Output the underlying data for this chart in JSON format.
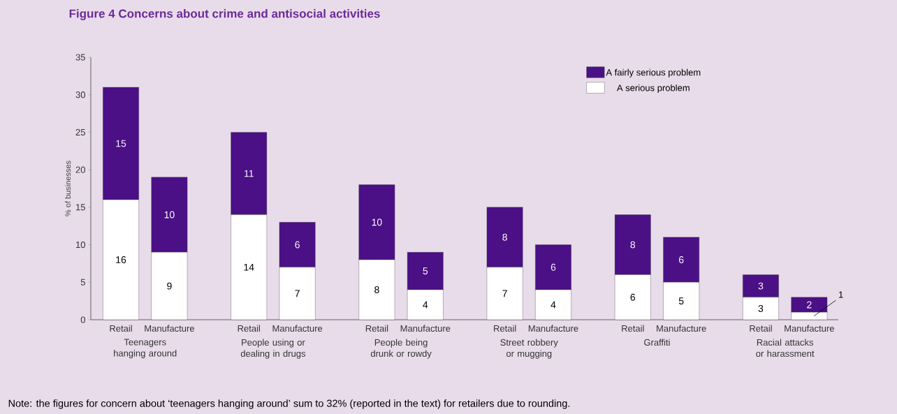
{
  "chart_data": {
    "type": "bar",
    "title": "Figure 4  Concerns about crime and antisocial activities",
    "ylabel": "% of businesses",
    "categories": [
      "Retail",
      "Manufacture",
      "Retail",
      "Manufacture",
      "Retail",
      "Manufacture",
      "Retail",
      "Manufacture",
      "Retail",
      "Manufacture",
      "Retail",
      "Manufacture"
    ],
    "stacked": true,
    "series": [
      {
        "name": "A serious problem",
        "color": "#ffffff",
        "values": [
          16,
          9,
          14,
          7,
          8,
          4,
          7,
          4,
          6,
          5,
          3,
          1
        ]
      },
      {
        "name": "A fairly serious problem",
        "color": "#4b0f86",
        "values": [
          15,
          10,
          11,
          6,
          10,
          5,
          8,
          6,
          8,
          6,
          3,
          2
        ]
      }
    ],
    "ylim": [
      0,
      35
    ],
    "yticks": [
      0,
      5,
      10,
      15,
      20,
      25,
      30,
      35
    ],
    "data_labels": true,
    "legend": "top right",
    "grid": false,
    "annotations": [
      "Teenagers hanging around",
      "People using or dealing in drugs",
      "People being drunk or rowdy",
      "Street robbery or mugging",
      "Graffiti",
      "Racial attacks or harassment",
      "Note: the figures for concern about ‘teenagers hanging around’ sum to 32% (reported in the text) for retailers due to rounding."
    ]
  }
}
